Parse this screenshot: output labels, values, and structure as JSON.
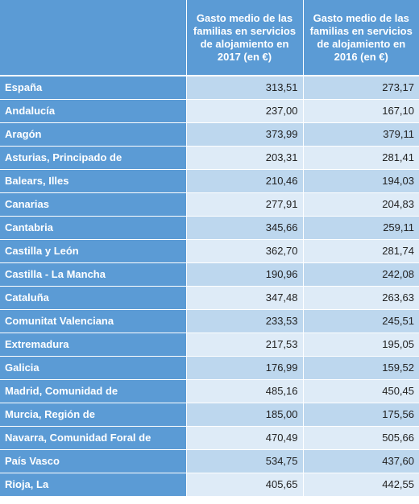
{
  "table": {
    "headers": [
      "",
      "Gasto medio de las familias en servicios de alojamiento en 2017 (en €)",
      "Gasto medio de las familias en servicios de alojamiento en 2016 (en €)"
    ],
    "rows": [
      {
        "region": "España",
        "y2017": "313,51",
        "y2016": "273,17"
      },
      {
        "region": "Andalucía",
        "y2017": "237,00",
        "y2016": "167,10"
      },
      {
        "region": "Aragón",
        "y2017": "373,99",
        "y2016": "379,11"
      },
      {
        "region": "Asturias, Principado de",
        "y2017": "203,31",
        "y2016": "281,41"
      },
      {
        "region": "Balears, Illes",
        "y2017": "210,46",
        "y2016": "194,03"
      },
      {
        "region": "Canarias",
        "y2017": "277,91",
        "y2016": "204,83"
      },
      {
        "region": "Cantabria",
        "y2017": "345,66",
        "y2016": "259,11"
      },
      {
        "region": "Castilla y León",
        "y2017": "362,70",
        "y2016": "281,74"
      },
      {
        "region": "Castilla - La Mancha",
        "y2017": "190,96",
        "y2016": "242,08"
      },
      {
        "region": "Cataluña",
        "y2017": "347,48",
        "y2016": "263,63"
      },
      {
        "region": "Comunitat Valenciana",
        "y2017": "233,53",
        "y2016": "245,51"
      },
      {
        "region": "Extremadura",
        "y2017": "217,53",
        "y2016": "195,05"
      },
      {
        "region": "Galicia",
        "y2017": "176,99",
        "y2016": "159,52"
      },
      {
        "region": "Madrid, Comunidad de",
        "y2017": "485,16",
        "y2016": "450,45"
      },
      {
        "region": "Murcia, Región de",
        "y2017": "185,00",
        "y2016": "175,56"
      },
      {
        "region": "Navarra, Comunidad Foral de",
        "y2017": "470,49",
        "y2016": "505,66"
      },
      {
        "region": "País Vasco",
        "y2017": "534,75",
        "y2016": "437,60"
      },
      {
        "region": "Rioja, La",
        "y2017": "405,65",
        "y2016": "442,55"
      }
    ]
  },
  "colors": {
    "header_bg": "#5b9bd5",
    "row_band_dark": "#bdd7ee",
    "row_band_light": "#deebf7"
  }
}
